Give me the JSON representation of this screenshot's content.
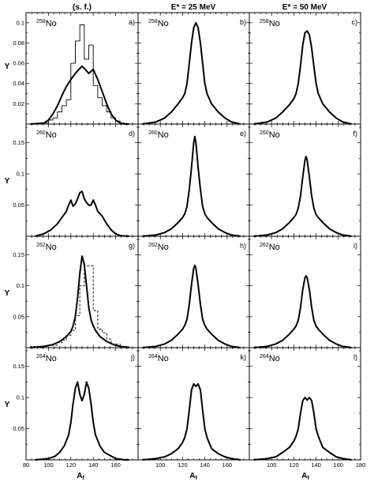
{
  "figure": {
    "column_titles": [
      "(s. f.)",
      "E* = 25 MeV",
      "E* = 50 MeV"
    ],
    "y_axis_label": "Y",
    "x_axis_label_main": "A",
    "x_axis_label_sub": "f",
    "row_nuclei": [
      {
        "mass": "258",
        "symbol": "No"
      },
      {
        "mass": "260",
        "symbol": "No"
      },
      {
        "mass": "262",
        "symbol": "No"
      },
      {
        "mass": "264",
        "symbol": "No"
      }
    ],
    "panel_letters": [
      "a)",
      "b)",
      "c)",
      "d)",
      "e)",
      "f)",
      "g)",
      "h)",
      "i)",
      "j)",
      "k)",
      "l)"
    ],
    "row_y_ticks": [
      [
        "0.02",
        "0.04",
        "0.06",
        "0.08",
        "0.1"
      ],
      [
        "0.05",
        "0.1",
        "0.15"
      ],
      [
        "0.05",
        "0.1",
        "0.15"
      ],
      [
        "0.05",
        "0.1",
        "0.15"
      ]
    ],
    "x_ticks_col1": [
      "80",
      "100",
      "120",
      "140",
      "160"
    ],
    "x_ticks_col2": [
      "100",
      "120",
      "140",
      "160"
    ],
    "x_ticks_col3": [
      "100",
      "120",
      "140",
      "160",
      "180"
    ]
  },
  "chart_data": [
    {
      "type": "line",
      "panel": "a)",
      "row": 1,
      "col": 1,
      "xlim": [
        80,
        180
      ],
      "ylim": [
        0,
        0.11
      ],
      "series": [
        {
          "style": "thick",
          "x": [
            84,
            96,
            100,
            104,
            108,
            112,
            116,
            120,
            124,
            128,
            130,
            132,
            136,
            140,
            144,
            148,
            152,
            156,
            160,
            164,
            168,
            172
          ],
          "y": [
            0,
            0.001,
            0.004,
            0.01,
            0.018,
            0.028,
            0.037,
            0.044,
            0.05,
            0.055,
            0.057,
            0.055,
            0.05,
            0.054,
            0.044,
            0.032,
            0.02,
            0.01,
            0.004,
            0.001,
            0,
            0
          ]
        },
        {
          "style": "histogram",
          "x": [
            96,
            100,
            104,
            108,
            112,
            116,
            120,
            124,
            128,
            132,
            136,
            140,
            144,
            148,
            152,
            156,
            160,
            164,
            168
          ],
          "y": [
            0.001,
            0.004,
            0.006,
            0.012,
            0.018,
            0.024,
            0.06,
            0.082,
            0.098,
            0.064,
            0.078,
            0.038,
            0.026,
            0.018,
            0.012,
            0.006,
            0.003,
            0.001,
            0
          ]
        }
      ]
    },
    {
      "type": "line",
      "panel": "b)",
      "row": 1,
      "col": 2,
      "xlim": [
        80,
        180
      ],
      "ylim": [
        0,
        0.11
      ],
      "series": [
        {
          "style": "thick",
          "x": [
            84,
            96,
            104,
            110,
            116,
            120,
            122,
            124,
            126,
            128,
            130,
            132,
            134,
            136,
            138,
            140,
            142,
            146,
            152,
            158,
            164,
            172
          ],
          "y": [
            0,
            0.002,
            0.006,
            0.012,
            0.02,
            0.026,
            0.03,
            0.04,
            0.06,
            0.08,
            0.095,
            0.1,
            0.095,
            0.08,
            0.06,
            0.04,
            0.03,
            0.02,
            0.012,
            0.006,
            0.002,
            0
          ]
        }
      ]
    },
    {
      "type": "line",
      "panel": "c)",
      "row": 1,
      "col": 3,
      "xlim": [
        80,
        180
      ],
      "ylim": [
        0,
        0.11
      ],
      "series": [
        {
          "style": "thick",
          "x": [
            84,
            96,
            104,
            110,
            116,
            120,
            122,
            124,
            126,
            128,
            130,
            132,
            134,
            136,
            138,
            140,
            142,
            146,
            152,
            158,
            164,
            172
          ],
          "y": [
            0,
            0.002,
            0.006,
            0.012,
            0.019,
            0.025,
            0.03,
            0.04,
            0.058,
            0.078,
            0.09,
            0.092,
            0.088,
            0.075,
            0.057,
            0.04,
            0.03,
            0.02,
            0.012,
            0.006,
            0.002,
            0
          ]
        }
      ]
    },
    {
      "type": "line",
      "panel": "d)",
      "row": 2,
      "col": 1,
      "xlim": [
        80,
        180
      ],
      "ylim": [
        0,
        0.18
      ],
      "series": [
        {
          "style": "thick",
          "x": [
            88,
            96,
            102,
            108,
            112,
            116,
            118,
            120,
            122,
            124,
            126,
            128,
            130,
            132,
            134,
            136,
            138,
            140,
            142,
            144,
            148,
            152,
            156,
            160,
            164,
            172
          ],
          "y": [
            0,
            0.004,
            0.01,
            0.02,
            0.03,
            0.04,
            0.05,
            0.058,
            0.048,
            0.052,
            0.06,
            0.07,
            0.072,
            0.06,
            0.054,
            0.05,
            0.05,
            0.058,
            0.05,
            0.04,
            0.032,
            0.02,
            0.01,
            0.004,
            0.001,
            0
          ]
        }
      ]
    },
    {
      "type": "line",
      "panel": "e)",
      "row": 2,
      "col": 2,
      "xlim": [
        80,
        180
      ],
      "ylim": [
        0,
        0.18
      ],
      "series": [
        {
          "style": "thick",
          "x": [
            84,
            96,
            104,
            110,
            116,
            120,
            122,
            124,
            126,
            128,
            130,
            131,
            132,
            134,
            136,
            138,
            140,
            142,
            146,
            152,
            158,
            164,
            172
          ],
          "y": [
            0,
            0.002,
            0.006,
            0.012,
            0.022,
            0.03,
            0.036,
            0.048,
            0.075,
            0.11,
            0.15,
            0.16,
            0.15,
            0.11,
            0.075,
            0.048,
            0.036,
            0.03,
            0.022,
            0.012,
            0.006,
            0.002,
            0
          ]
        }
      ]
    },
    {
      "type": "line",
      "panel": "f)",
      "row": 2,
      "col": 3,
      "xlim": [
        80,
        180
      ],
      "ylim": [
        0,
        0.18
      ],
      "series": [
        {
          "style": "thick",
          "x": [
            84,
            96,
            104,
            110,
            116,
            120,
            122,
            124,
            126,
            128,
            130,
            131,
            132,
            134,
            136,
            138,
            140,
            142,
            146,
            152,
            158,
            164,
            172
          ],
          "y": [
            0,
            0.002,
            0.006,
            0.012,
            0.022,
            0.03,
            0.035,
            0.045,
            0.065,
            0.095,
            0.122,
            0.128,
            0.122,
            0.095,
            0.065,
            0.045,
            0.035,
            0.03,
            0.022,
            0.012,
            0.006,
            0.002,
            0
          ]
        }
      ]
    },
    {
      "type": "line",
      "panel": "g)",
      "row": 3,
      "col": 1,
      "xlim": [
        80,
        180
      ],
      "ylim": [
        0,
        0.18
      ],
      "series": [
        {
          "style": "thick",
          "x": [
            84,
            96,
            104,
            110,
            116,
            120,
            122,
            124,
            126,
            128,
            130,
            132,
            134,
            136,
            138,
            140,
            142,
            146,
            152,
            158,
            164,
            172
          ],
          "y": [
            0,
            0.002,
            0.005,
            0.01,
            0.018,
            0.026,
            0.035,
            0.05,
            0.08,
            0.12,
            0.148,
            0.135,
            0.1,
            0.065,
            0.045,
            0.035,
            0.028,
            0.018,
            0.01,
            0.005,
            0.002,
            0
          ]
        },
        {
          "style": "dashed-histogram",
          "x": [
            84,
            92,
            100,
            108,
            112,
            116,
            120,
            124,
            128,
            132,
            136,
            140,
            144,
            148,
            152,
            156,
            164,
            172
          ],
          "y": [
            0.002,
            0.002,
            0.004,
            0.008,
            0.012,
            0.02,
            0.028,
            0.052,
            0.1,
            0.132,
            0.132,
            0.06,
            0.03,
            0.024,
            0.014,
            0.006,
            0.002,
            0
          ]
        }
      ]
    },
    {
      "type": "line",
      "panel": "h)",
      "row": 3,
      "col": 2,
      "xlim": [
        80,
        180
      ],
      "ylim": [
        0,
        0.18
      ],
      "series": [
        {
          "style": "thick",
          "x": [
            84,
            96,
            104,
            110,
            116,
            120,
            122,
            124,
            126,
            128,
            130,
            131,
            132,
            134,
            136,
            138,
            140,
            142,
            146,
            152,
            158,
            164,
            172
          ],
          "y": [
            0,
            0.002,
            0.006,
            0.012,
            0.022,
            0.03,
            0.036,
            0.046,
            0.07,
            0.102,
            0.128,
            0.133,
            0.128,
            0.102,
            0.07,
            0.046,
            0.036,
            0.03,
            0.022,
            0.012,
            0.006,
            0.002,
            0
          ]
        }
      ]
    },
    {
      "type": "line",
      "panel": "i)",
      "row": 3,
      "col": 3,
      "xlim": [
        80,
        180
      ],
      "ylim": [
        0,
        0.18
      ],
      "series": [
        {
          "style": "thick",
          "x": [
            84,
            96,
            104,
            110,
            116,
            120,
            122,
            124,
            126,
            128,
            130,
            131,
            132,
            134,
            136,
            138,
            140,
            142,
            146,
            152,
            158,
            164,
            172
          ],
          "y": [
            0,
            0.002,
            0.006,
            0.012,
            0.022,
            0.03,
            0.035,
            0.044,
            0.065,
            0.094,
            0.113,
            0.116,
            0.113,
            0.094,
            0.065,
            0.044,
            0.035,
            0.03,
            0.022,
            0.012,
            0.006,
            0.002,
            0
          ]
        }
      ]
    },
    {
      "type": "line",
      "panel": "j)",
      "row": 4,
      "col": 1,
      "xlim": [
        80,
        180
      ],
      "ylim": [
        0,
        0.18
      ],
      "series": [
        {
          "style": "thick",
          "x": [
            88,
            100,
            106,
            110,
            114,
            118,
            120,
            122,
            124,
            126,
            128,
            130,
            132,
            134,
            136,
            138,
            140,
            142,
            146,
            150,
            156,
            160,
            168,
            172
          ],
          "y": [
            0,
            0.002,
            0.006,
            0.012,
            0.022,
            0.04,
            0.06,
            0.09,
            0.115,
            0.125,
            0.105,
            0.095,
            0.105,
            0.125,
            0.115,
            0.09,
            0.06,
            0.04,
            0.022,
            0.012,
            0.006,
            0.002,
            0,
            0
          ]
        }
      ]
    },
    {
      "type": "line",
      "panel": "k)",
      "row": 4,
      "col": 2,
      "xlim": [
        80,
        180
      ],
      "ylim": [
        0,
        0.18
      ],
      "series": [
        {
          "style": "thick",
          "x": [
            84,
            96,
            104,
            110,
            116,
            120,
            122,
            124,
            126,
            128,
            130,
            132,
            134,
            136,
            138,
            140,
            142,
            146,
            152,
            158,
            164,
            172
          ],
          "y": [
            0,
            0.002,
            0.005,
            0.01,
            0.018,
            0.028,
            0.036,
            0.05,
            0.08,
            0.112,
            0.122,
            0.118,
            0.122,
            0.112,
            0.08,
            0.05,
            0.036,
            0.018,
            0.01,
            0.005,
            0.002,
            0
          ]
        }
      ]
    },
    {
      "type": "line",
      "panel": "l)",
      "row": 4,
      "col": 3,
      "xlim": [
        80,
        180
      ],
      "ylim": [
        0,
        0.18
      ],
      "series": [
        {
          "style": "thick",
          "x": [
            84,
            96,
            104,
            110,
            116,
            120,
            122,
            124,
            126,
            128,
            130,
            132,
            134,
            136,
            138,
            140,
            142,
            146,
            152,
            158,
            164,
            172
          ],
          "y": [
            0,
            0.002,
            0.005,
            0.012,
            0.02,
            0.03,
            0.038,
            0.05,
            0.075,
            0.095,
            0.1,
            0.096,
            0.1,
            0.095,
            0.075,
            0.05,
            0.038,
            0.02,
            0.012,
            0.005,
            0.002,
            0
          ]
        }
      ]
    }
  ]
}
